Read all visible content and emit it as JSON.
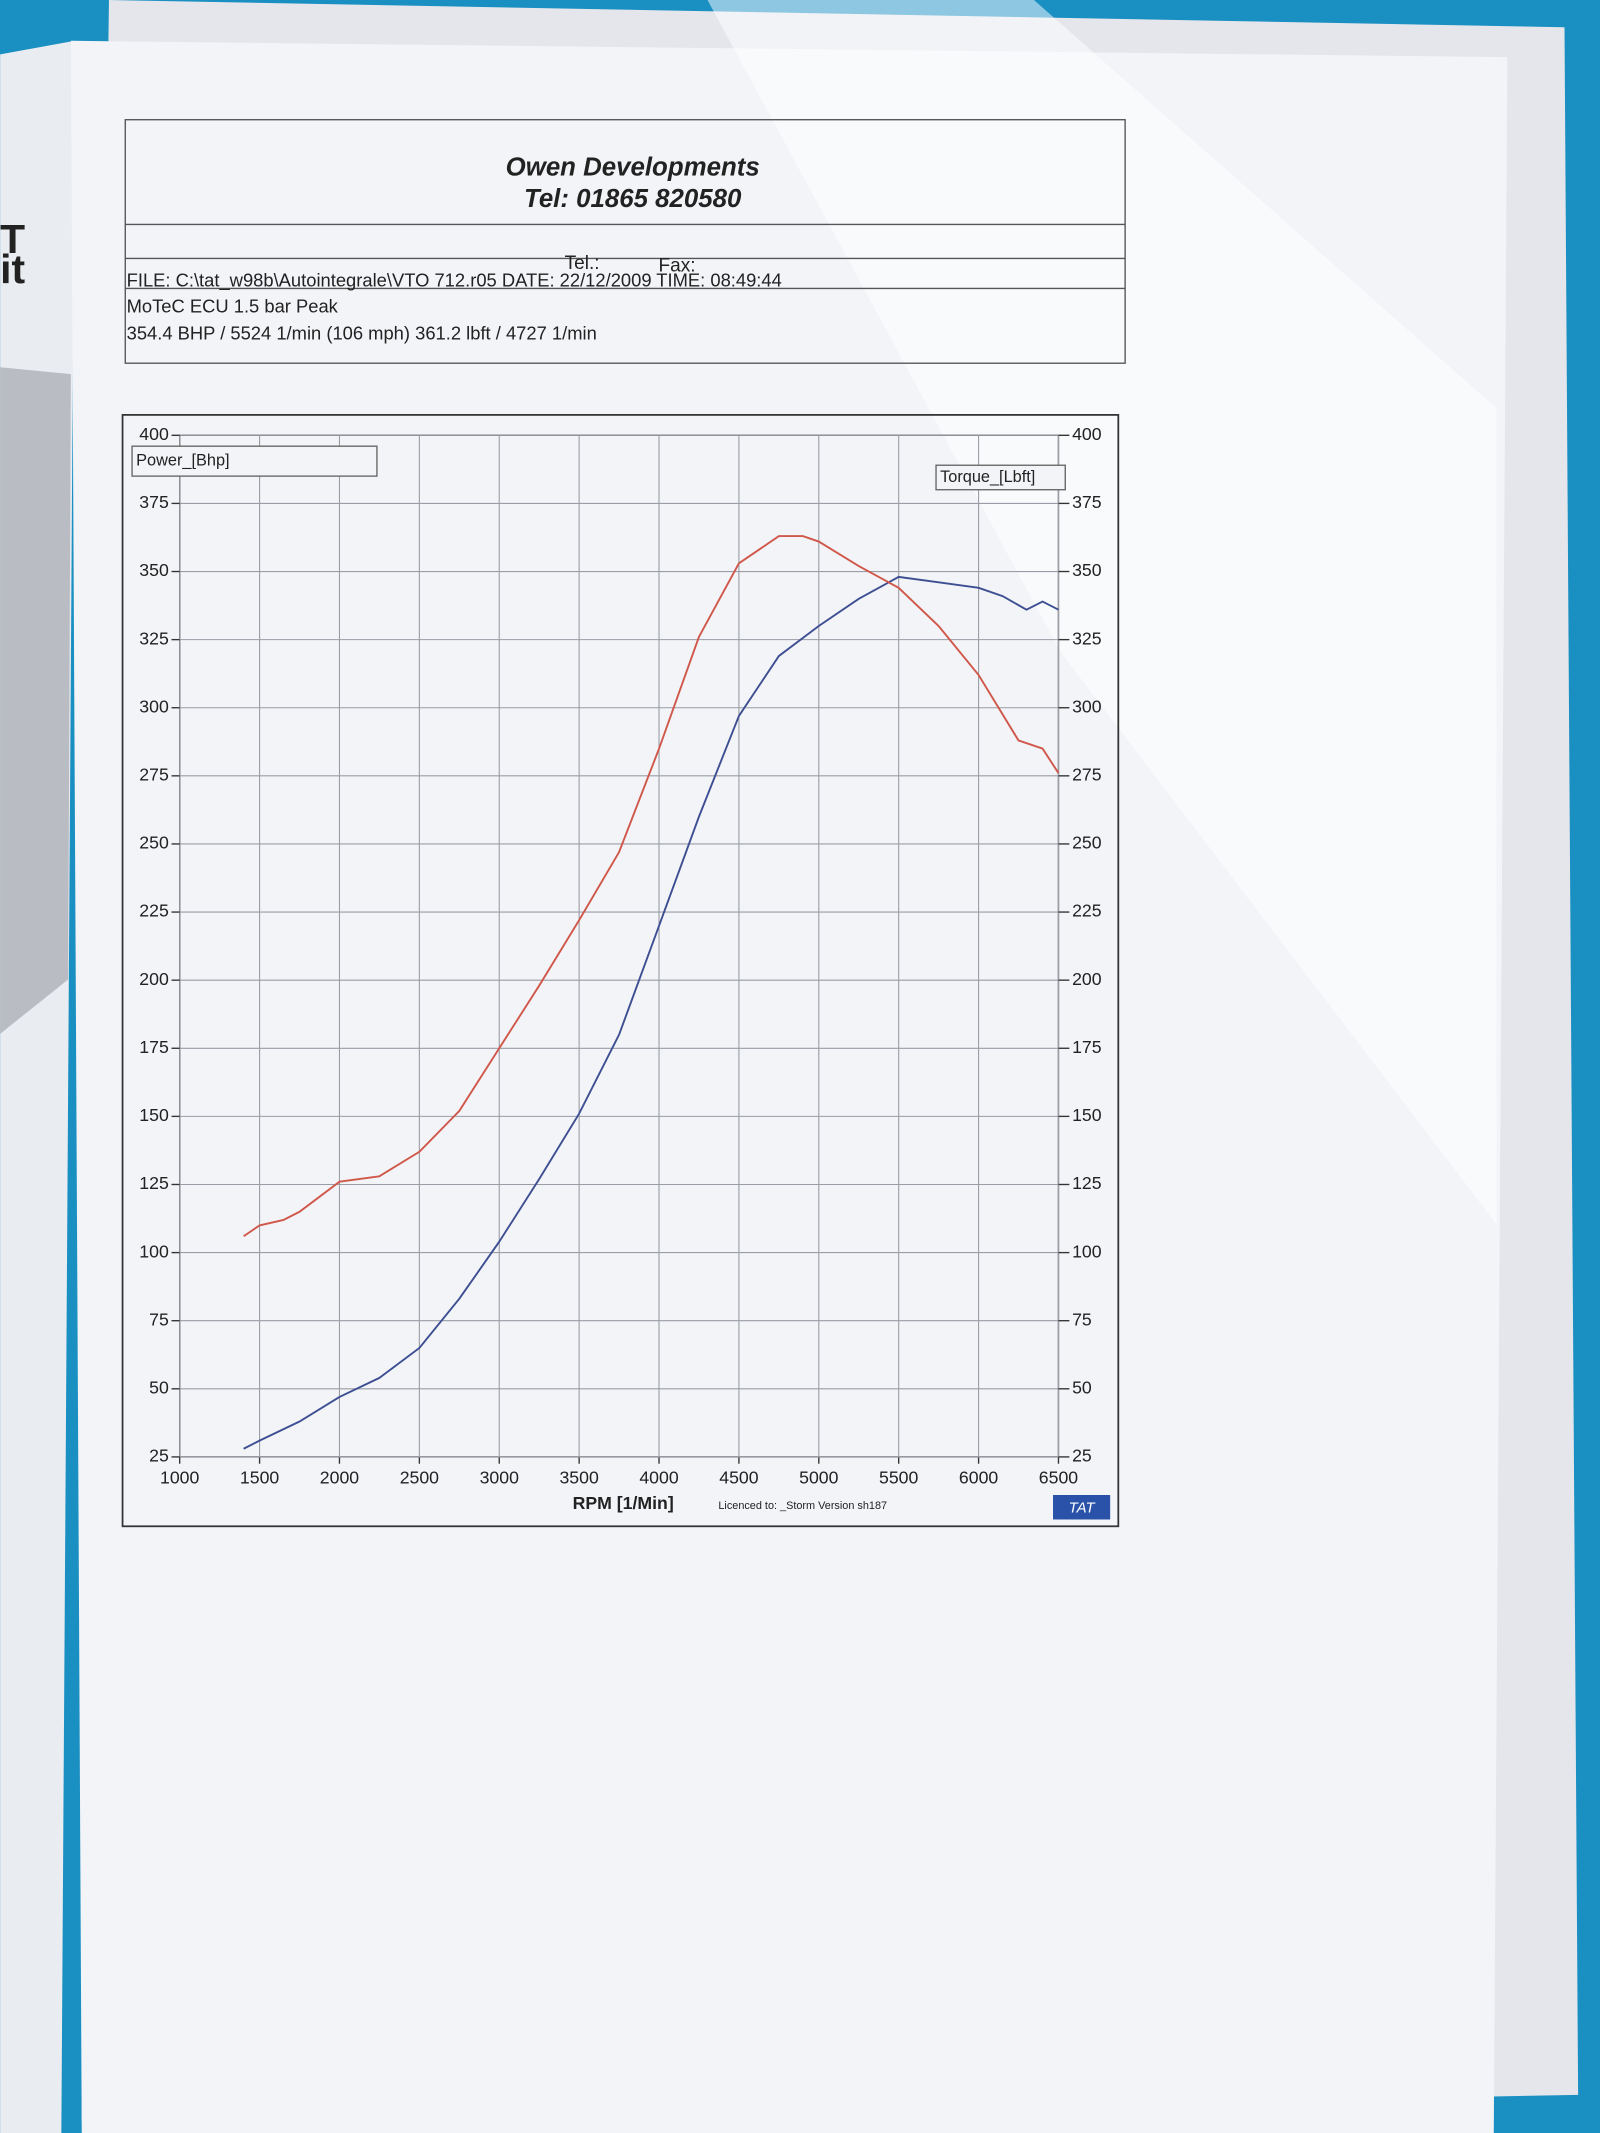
{
  "left_page": [
    "T",
    "it"
  ],
  "header": {
    "title": "Owen Developments",
    "phone": "Tel: 01865 820580",
    "tel_label": "Tel.:",
    "fax_label": "Fax:",
    "file": "FILE: C:\\tat_w98b\\Autointegrale\\VTO 712.r05  DATE: 22/12/2009  TIME: 08:49:44",
    "setup": "MoTeC  ECU 1.5 bar Peak",
    "peaks": "354.4 BHP / 5524 1/min (106 mph)    361.2 lbft / 4727 1/min"
  },
  "chart_data": {
    "type": "line",
    "x_label": "RPM  [1/Min]",
    "licence": "Licenced to: _Storm   Version sh187",
    "logo": "TAT",
    "xlim": [
      1000,
      6500
    ],
    "xticks": [
      1000,
      1500,
      2000,
      2500,
      3000,
      3500,
      4000,
      4500,
      5000,
      5500,
      6000,
      6500
    ],
    "ylim": [
      25,
      400
    ],
    "yticks": [
      25,
      50,
      75,
      100,
      125,
      150,
      175,
      200,
      225,
      250,
      275,
      300,
      325,
      350,
      375,
      400
    ],
    "y2lim": [
      25,
      400
    ],
    "y2ticks": [
      25,
      50,
      75,
      100,
      125,
      150,
      175,
      200,
      225,
      250,
      275,
      300,
      325,
      350,
      375,
      400
    ],
    "grid": true,
    "series": [
      {
        "name": "Power_[Bhp]",
        "color": "#3d4f92",
        "axis": "y",
        "x": [
          1400,
          1500,
          1750,
          2000,
          2250,
          2500,
          2750,
          3000,
          3250,
          3500,
          3750,
          4000,
          4250,
          4500,
          4750,
          5000,
          5250,
          5500,
          5750,
          6000,
          6150,
          6300,
          6400,
          6500
        ],
        "values": [
          28,
          31,
          38,
          47,
          54,
          65,
          83,
          104,
          127,
          151,
          180,
          220,
          260,
          297,
          319,
          330,
          340,
          348,
          346,
          344,
          341,
          336,
          339,
          336
        ]
      },
      {
        "name": "Torque_[Lbft]",
        "color": "#d0584a",
        "axis": "y2",
        "x": [
          1400,
          1500,
          1650,
          1750,
          2000,
          2250,
          2500,
          2750,
          3000,
          3250,
          3500,
          3750,
          4000,
          4250,
          4500,
          4750,
          4900,
          5000,
          5250,
          5500,
          5750,
          6000,
          6250,
          6400,
          6500
        ],
        "values": [
          106,
          110,
          112,
          115,
          126,
          128,
          137,
          152,
          175,
          198,
          222,
          247,
          285,
          326,
          353,
          363,
          363,
          361,
          352,
          344,
          330,
          312,
          288,
          285,
          276
        ]
      }
    ]
  }
}
